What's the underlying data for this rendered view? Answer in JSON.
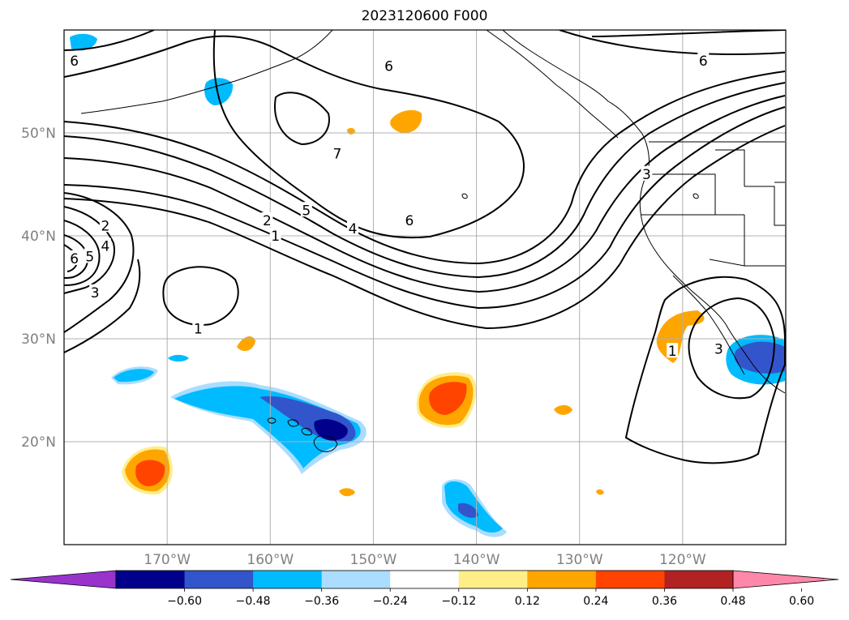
{
  "title": "2023120600 F000",
  "map": {
    "projection": "plate-carree",
    "lon_range": [
      -180,
      -110
    ],
    "lat_range": [
      10,
      60
    ],
    "lat_ticks": [
      {
        "value": 50,
        "label": "50°N"
      },
      {
        "value": 40,
        "label": "40°N"
      },
      {
        "value": 30,
        "label": "30°N"
      },
      {
        "value": 20,
        "label": "20°N"
      }
    ],
    "lon_ticks": [
      {
        "value": -170,
        "label": "170°W"
      },
      {
        "value": -160,
        "label": "160°W"
      },
      {
        "value": -150,
        "label": "150°W"
      },
      {
        "value": -140,
        "label": "140°W"
      },
      {
        "value": -130,
        "label": "130°W"
      },
      {
        "value": -120,
        "label": "120°W"
      }
    ],
    "gridlines": true,
    "contour_color": "#000000"
  },
  "contour_labels": [
    {
      "text": "6",
      "lon": -179,
      "lat": 57
    },
    {
      "text": "6",
      "lon": -148.5,
      "lat": 56.5
    },
    {
      "text": "6",
      "lon": -118,
      "lat": 57
    },
    {
      "text": "7",
      "lon": -153.5,
      "lat": 48
    },
    {
      "text": "6",
      "lon": -146.5,
      "lat": 41.5
    },
    {
      "text": "5",
      "lon": -156.5,
      "lat": 42.5
    },
    {
      "text": "4",
      "lon": -152,
      "lat": 40.7
    },
    {
      "text": "2",
      "lon": -160.3,
      "lat": 41.5
    },
    {
      "text": "1",
      "lon": -159.5,
      "lat": 40
    },
    {
      "text": "3",
      "lon": -123.5,
      "lat": 46
    },
    {
      "text": "2",
      "lon": -176,
      "lat": 41
    },
    {
      "text": "4",
      "lon": -176,
      "lat": 39
    },
    {
      "text": "5",
      "lon": -177.5,
      "lat": 38
    },
    {
      "text": "6",
      "lon": -179,
      "lat": 37.8
    },
    {
      "text": "3",
      "lon": -177,
      "lat": 34.5
    },
    {
      "text": "1",
      "lon": -167,
      "lat": 31
    },
    {
      "text": "1",
      "lon": -121,
      "lat": 28.8
    },
    {
      "text": "3",
      "lon": -116.5,
      "lat": 29
    }
  ],
  "colorbar": {
    "orientation": "horizontal",
    "extend": "both",
    "bounds": [
      -0.72,
      -0.6,
      -0.48,
      -0.36,
      -0.24,
      -0.12,
      0.12,
      0.24,
      0.36,
      0.48,
      0.6,
      0.72
    ],
    "colors": [
      "#9933cc",
      "#00008b",
      "#3355cc",
      "#00bbff",
      "#aaddff",
      "#ffffff",
      "#ffee88",
      "#ffa500",
      "#ff4400",
      "#b22222",
      "#ff88aa"
    ],
    "tick_labels": [
      "−0.60",
      "−0.48",
      "−0.36",
      "−0.24",
      "−0.12",
      "0.12",
      "0.24",
      "0.36",
      "0.48",
      "0.60"
    ]
  },
  "colors": {
    "pos_light": "#ffee88",
    "pos_mid": "#ffa500",
    "pos_high": "#ff4400",
    "neg_light": "#aaddff",
    "neg_mid": "#00bbff",
    "neg_high": "#3355cc",
    "neg_max": "#00008b",
    "grid": "#b0b0b0"
  }
}
